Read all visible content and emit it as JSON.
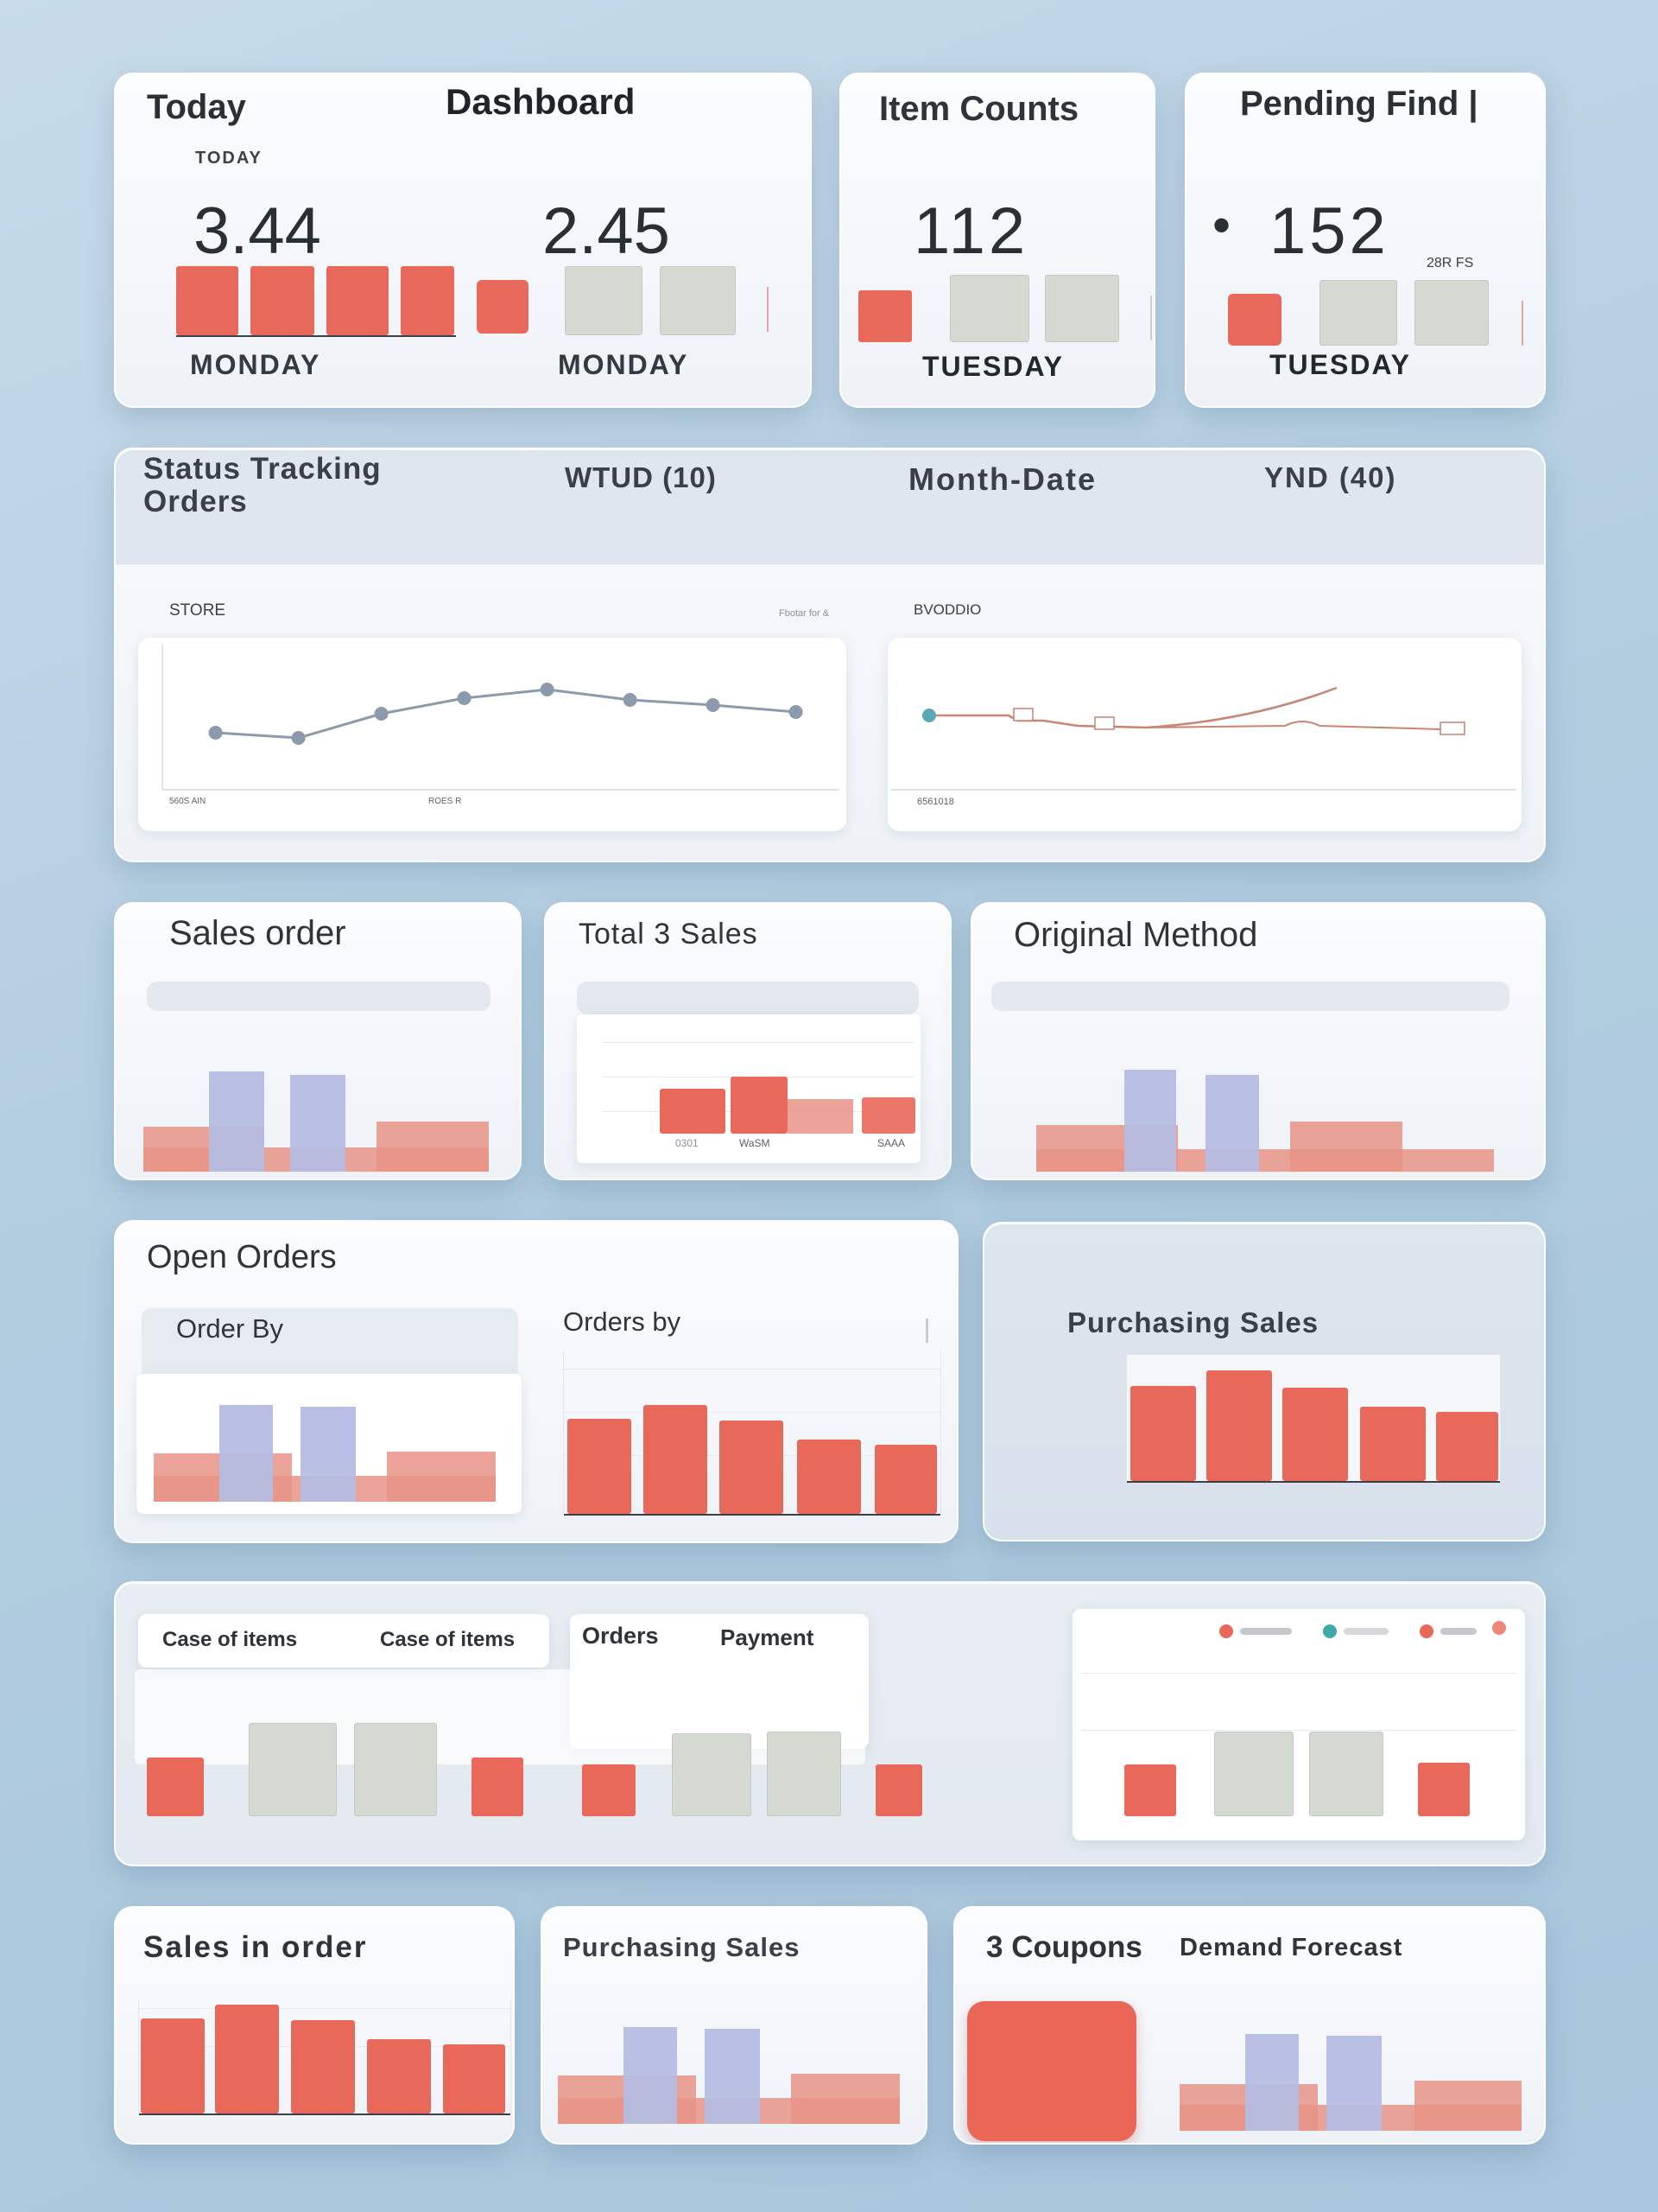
{
  "top": {
    "today_card": {
      "title": "Today",
      "heading": "Dashboard",
      "sublabel": "TODAY",
      "value_a": "3.44",
      "value_b": "2.45",
      "day_a": "MONDAY",
      "day_b": "MONDAY"
    },
    "item_counts": {
      "title": "Item Counts",
      "value": "112",
      "day": "TUESDAY"
    },
    "pending": {
      "title": "Pending Find |",
      "bullet": "•",
      "value": "152",
      "note": "28R FS",
      "day": "TUESDAY"
    }
  },
  "status": {
    "title": "Status Tracking Orders",
    "tabs": [
      "WTUD (10)",
      "Month-Date",
      "YND (40)"
    ],
    "left_chart": {
      "label": "STORE",
      "corner": "Fbotar for &",
      "xlabels": [
        "560S AIN",
        "ROES R"
      ]
    },
    "right_chart": {
      "label": "BVODDIO",
      "xlabels": [
        "6561018"
      ]
    }
  },
  "row3": {
    "sales_order": {
      "title": "Sales order"
    },
    "total_sales": {
      "title": "Total 3 Sales",
      "xlabels": [
        "0301",
        "WaSM",
        "SAAA"
      ]
    },
    "original_method": {
      "title": "Original Method"
    }
  },
  "row4": {
    "open_orders": {
      "title": "Open Orders",
      "order_by": "Order By",
      "orders_by": "Orders by"
    },
    "purchasing": {
      "title": "Purchasing Sales"
    }
  },
  "row5": {
    "tabs": [
      "Case of items",
      "Case of items",
      "Orders",
      "Payment"
    ]
  },
  "row6": {
    "sales_in_order": {
      "title": "Sales in order"
    },
    "purchasing_sales": {
      "title": "Purchasing Sales"
    },
    "coupons": {
      "title": "3 Coupons",
      "forecast": "Demand Forecast"
    }
  },
  "colors": {
    "accent_red": "#e8685a",
    "soft_red": "#e79387",
    "lavender": "#b6bde2",
    "grey": "#d4dad2",
    "line_blue": "#8c9bab",
    "line_red": "#c98472"
  }
}
